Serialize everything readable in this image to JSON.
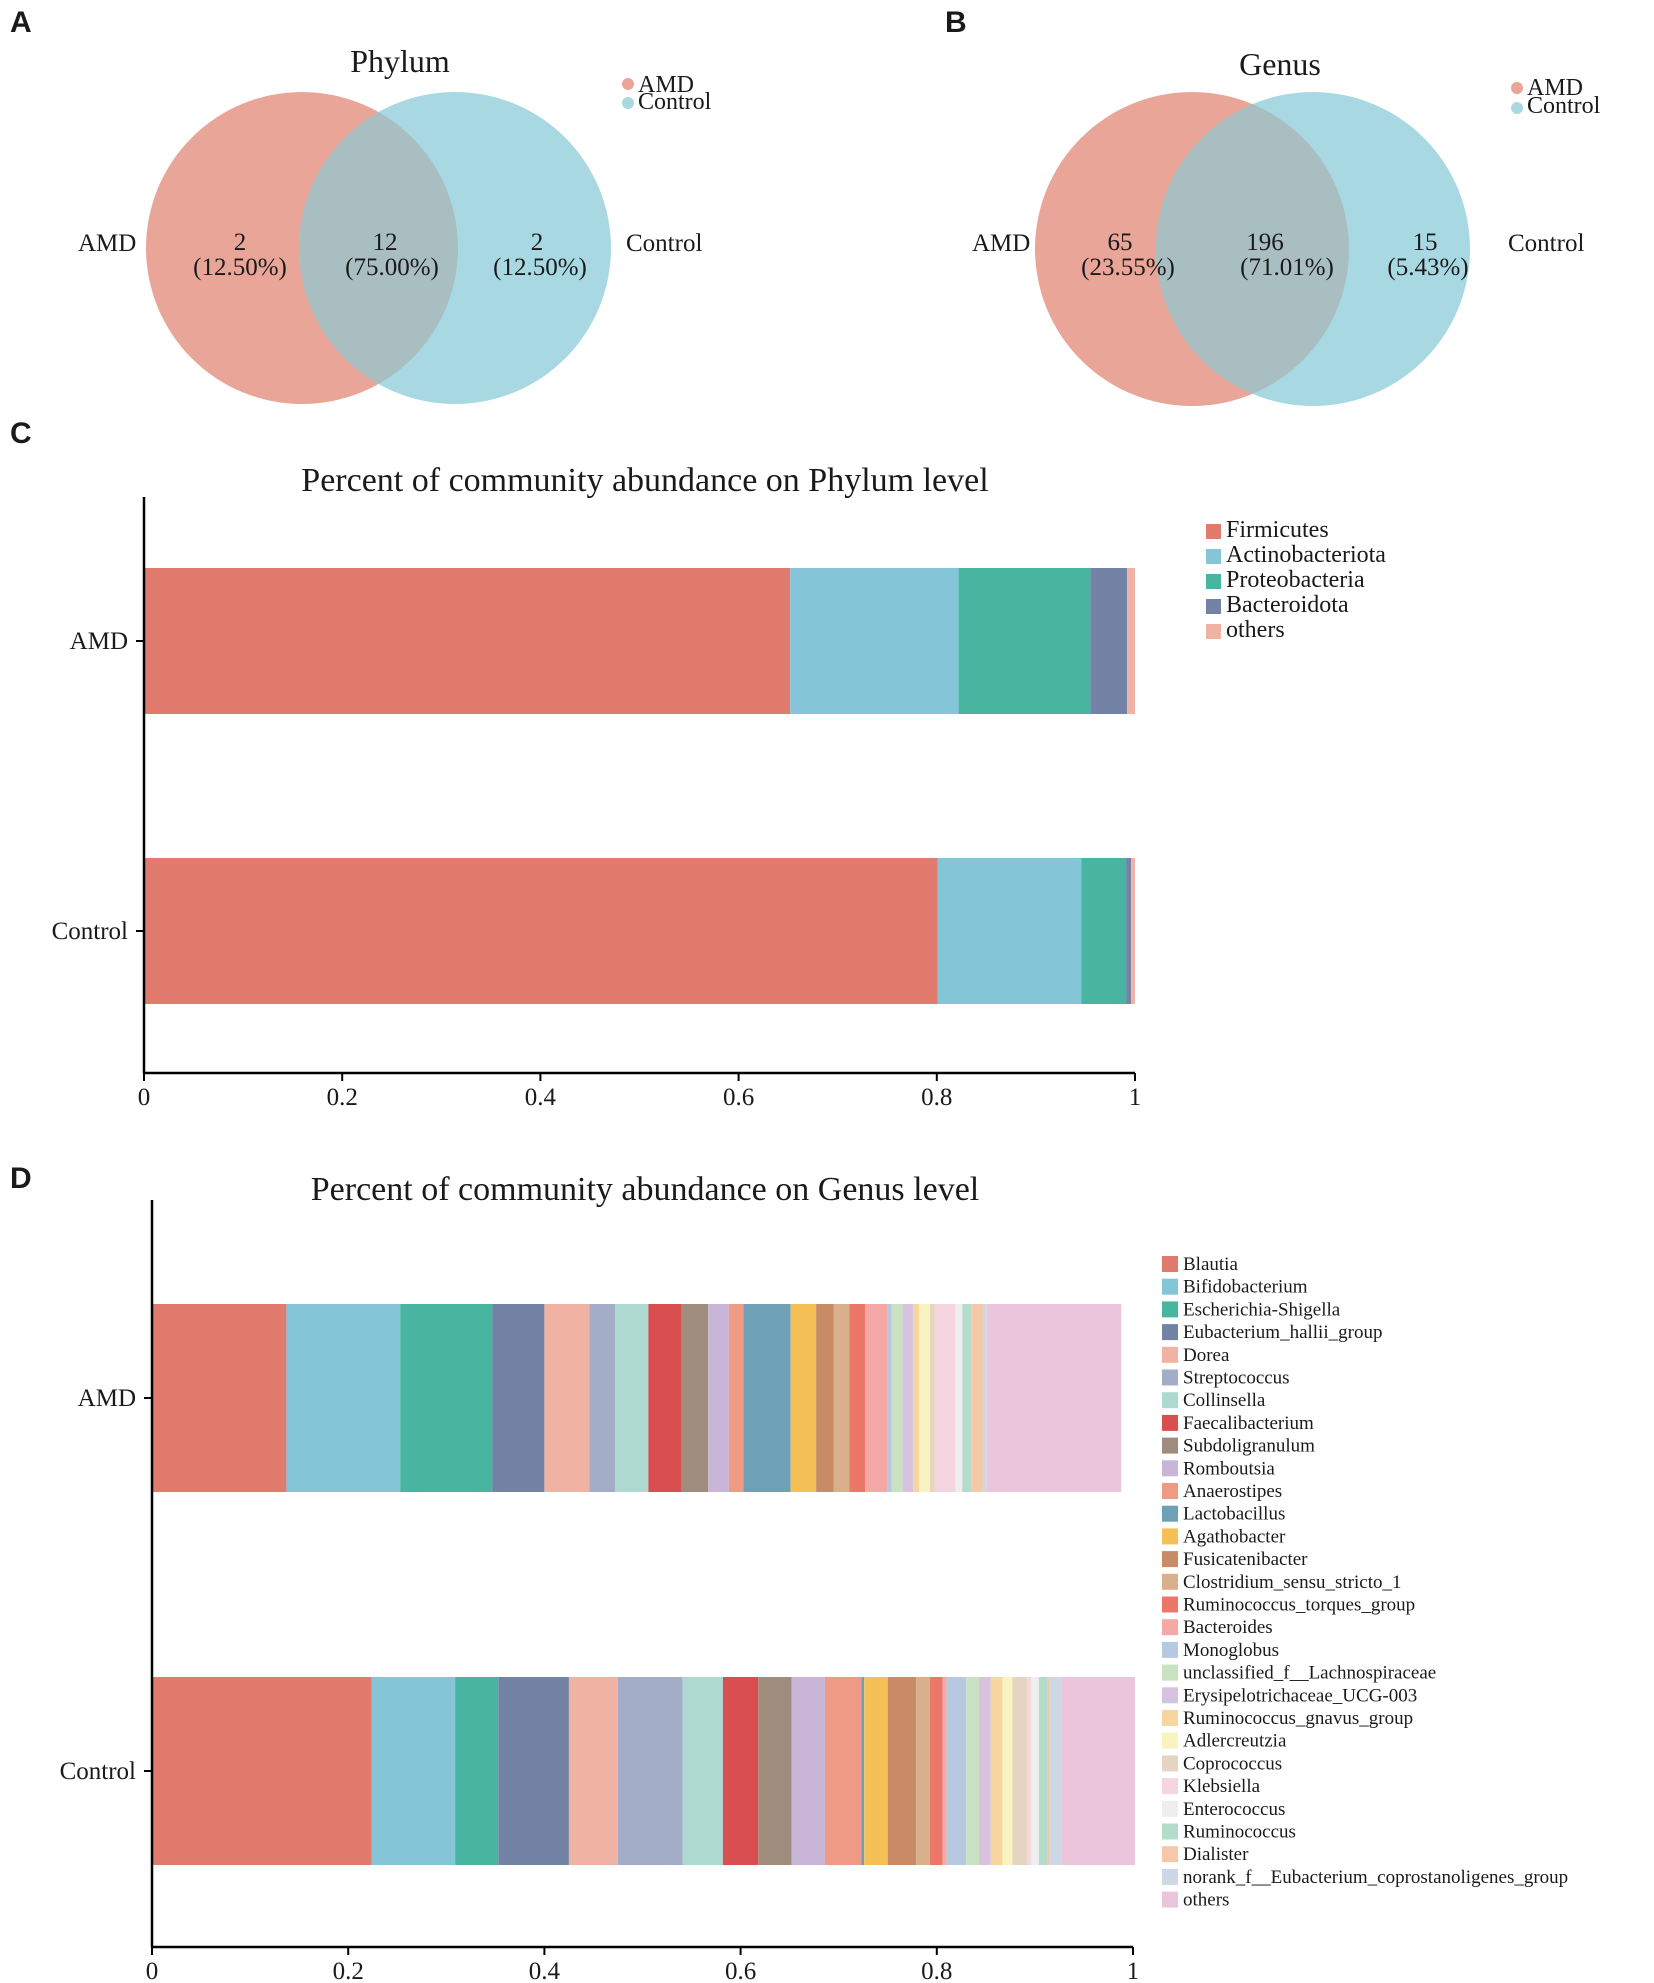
{
  "panels": {
    "a": {
      "letter": "A",
      "title": "Phylum",
      "left_label": "AMD",
      "right_label": "Control",
      "legend": [
        {
          "name": "AMD",
          "color": "#e8a598"
        },
        {
          "name": "Control",
          "color": "#a8d9e3"
        }
      ],
      "left": {
        "count": "2",
        "pct": "(12.50%)"
      },
      "middle": {
        "count": "12",
        "pct": "(75.00%)"
      },
      "right": {
        "count": "2",
        "pct": "(12.50%)"
      }
    },
    "b": {
      "letter": "B",
      "title": "Genus",
      "left_label": "AMD",
      "right_label": "Control",
      "legend": [
        {
          "name": "AMD",
          "color": "#e8a598"
        },
        {
          "name": "Control",
          "color": "#a8d9e3"
        }
      ],
      "left": {
        "count": "65",
        "pct": "(23.55%)"
      },
      "middle": {
        "count": "196",
        "pct": "(71.01%)"
      },
      "right": {
        "count": "15",
        "pct": "(5.43%)"
      }
    },
    "c": {
      "letter": "C"
    },
    "d": {
      "letter": "D"
    }
  },
  "chart_data": [
    {
      "type": "venn",
      "title": "Phylum",
      "sets": [
        "AMD",
        "Control"
      ],
      "regions": [
        {
          "region": "AMD only",
          "count": 2,
          "percent": 12.5
        },
        {
          "region": "Shared",
          "count": 12,
          "percent": 75.0
        },
        {
          "region": "Control only",
          "count": 2,
          "percent": 12.5
        }
      ]
    },
    {
      "type": "venn",
      "title": "Genus",
      "sets": [
        "AMD",
        "Control"
      ],
      "regions": [
        {
          "region": "AMD only",
          "count": 65,
          "percent": 23.55
        },
        {
          "region": "Shared",
          "count": 196,
          "percent": 71.01
        },
        {
          "region": "Control only",
          "count": 15,
          "percent": 5.43
        }
      ]
    },
    {
      "type": "bar",
      "orientation": "horizontal",
      "stacked": true,
      "title": "Percent of community abundance on Phylum level",
      "categories": [
        "AMD",
        "Control"
      ],
      "xlim": [
        0,
        1
      ],
      "xticks": [
        "0",
        "0.2",
        "0.4",
        "0.6",
        "0.8",
        "1"
      ],
      "legend_position": "top-right",
      "series": [
        {
          "name": "Firmicutes",
          "color": "#e07b6d",
          "values": [
            0.652,
            0.801
          ]
        },
        {
          "name": "Actinobacteriota",
          "color": "#84c6d8",
          "values": [
            0.17,
            0.145
          ]
        },
        {
          "name": "Proteobacteria",
          "color": "#48b5a0",
          "values": [
            0.133,
            0.045
          ]
        },
        {
          "name": "Bacteroidota",
          "color": "#7283a6",
          "values": [
            0.037,
            0.005
          ]
        },
        {
          "name": "others",
          "color": "#f0b3a3",
          "values": [
            0.008,
            0.004
          ]
        }
      ]
    },
    {
      "type": "bar",
      "orientation": "horizontal",
      "stacked": true,
      "title": "Percent of community abundance on Genus level",
      "categories": [
        "AMD",
        "Control"
      ],
      "xlim": [
        0,
        1
      ],
      "xticks": [
        "0",
        "0.2",
        "0.4",
        "0.6",
        "0.8",
        "1"
      ],
      "legend_position": "right",
      "series": [
        {
          "name": "Blautia",
          "color": "#e07b6d",
          "values": [
            0.137,
            0.224
          ]
        },
        {
          "name": "Bifidobacterium",
          "color": "#84c6d8",
          "values": [
            0.116,
            0.085
          ]
        },
        {
          "name": "Escherichia-Shigella",
          "color": "#48b5a0",
          "values": [
            0.094,
            0.044
          ]
        },
        {
          "name": "Eubacterium_hallii_group",
          "color": "#7283a6",
          "values": [
            0.053,
            0.072
          ]
        },
        {
          "name": "Dorea",
          "color": "#f0b3a3",
          "values": [
            0.046,
            0.05
          ]
        },
        {
          "name": "Streptococcus",
          "color": "#a4adc8",
          "values": [
            0.026,
            0.066
          ]
        },
        {
          "name": "Collinsella",
          "color": "#add9d0",
          "values": [
            0.034,
            0.041
          ]
        },
        {
          "name": "Faecalibacterium",
          "color": "#d94f4f",
          "values": [
            0.034,
            0.036
          ]
        },
        {
          "name": "Subdoligranulum",
          "color": "#a08c7d",
          "values": [
            0.027,
            0.034
          ]
        },
        {
          "name": "Romboutsia",
          "color": "#c9b5d8",
          "values": [
            0.021,
            0.034
          ]
        },
        {
          "name": "Anaerostipes",
          "color": "#ef9a85",
          "values": [
            0.015,
            0.037
          ]
        },
        {
          "name": "Lactobacillus",
          "color": "#6fa1b6",
          "values": [
            0.048,
            0.003
          ]
        },
        {
          "name": "Agathobacter",
          "color": "#f5c055",
          "values": [
            0.026,
            0.024
          ]
        },
        {
          "name": "Fusicatenibacter",
          "color": "#c98b65",
          "values": [
            0.018,
            0.029
          ]
        },
        {
          "name": "Clostridium_sensu_stricto_1",
          "color": "#d9b08c",
          "values": [
            0.016,
            0.014
          ]
        },
        {
          "name": "Ruminococcus_torques_group",
          "color": "#ec7769",
          "values": [
            0.016,
            0.013
          ]
        },
        {
          "name": "Bacteroides",
          "color": "#f4a9a7",
          "values": [
            0.023,
            0.004
          ]
        },
        {
          "name": "Monoglobus",
          "color": "#b7c9e0",
          "values": [
            0.004,
            0.02
          ]
        },
        {
          "name": "unclassified_f__Lachnospiraceae",
          "color": "#c9e3c2",
          "values": [
            0.011,
            0.013
          ]
        },
        {
          "name": "Erysipelotrichaceae_UCG-003",
          "color": "#d7c3e0",
          "values": [
            0.011,
            0.012
          ]
        },
        {
          "name": "Ruminococcus_gnavus_group",
          "color": "#f6d5a0",
          "values": [
            0.006,
            0.012
          ]
        },
        {
          "name": "Adlercreutzia",
          "color": "#f9f3c0",
          "values": [
            0.011,
            0.01
          ]
        },
        {
          "name": "Coprococcus",
          "color": "#e5d5c0",
          "values": [
            0.005,
            0.015
          ]
        },
        {
          "name": "Klebsiella",
          "color": "#f5d5df",
          "values": [
            0.021,
            0.004
          ]
        },
        {
          "name": "Enterococcus",
          "color": "#eeeeee",
          "values": [
            0.007,
            0.008
          ]
        },
        {
          "name": "Ruminococcus",
          "color": "#b3dccb",
          "values": [
            0.009,
            0.009
          ]
        },
        {
          "name": "Dialister",
          "color": "#f6c8a8",
          "values": [
            0.012,
            0.002
          ]
        },
        {
          "name": "norank_f__Eubacterium_coprostanoligenes_group",
          "color": "#cdd7e6",
          "values": [
            0.004,
            0.012
          ]
        },
        {
          "name": "others",
          "color": "#ebc5dc",
          "values": [
            0.137,
            0.075
          ]
        }
      ]
    }
  ]
}
